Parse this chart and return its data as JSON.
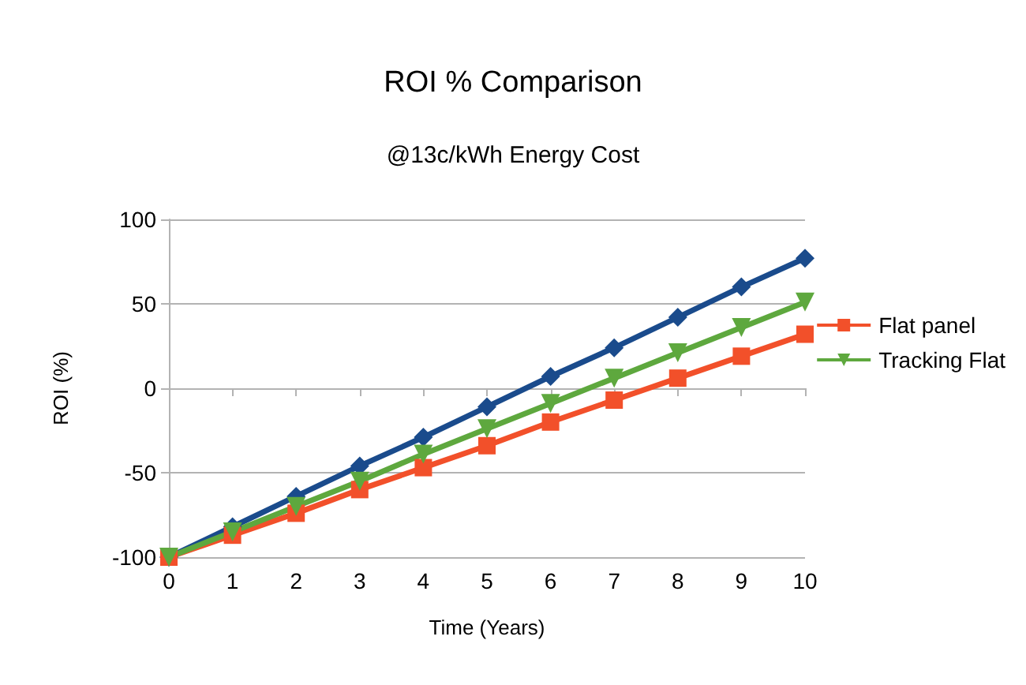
{
  "chart_data": {
    "type": "line",
    "title": "ROI % Comparison",
    "subtitle": "@13c/kWh Energy Cost",
    "xlabel": "Time (Years)",
    "ylabel": "ROI (%)",
    "categories": [
      "0",
      "1",
      "2",
      "3",
      "4",
      "5",
      "6",
      "7",
      "8",
      "9",
      "10"
    ],
    "series": [
      {
        "color": "#1a4b8c",
        "marker": "diamond",
        "values": [
          -100,
          -82,
          -64,
          -46,
          -29,
          -11,
          7,
          24,
          42,
          60,
          77
        ]
      },
      {
        "name": "Flat panel",
        "color": "#f2502a",
        "marker": "square",
        "values": [
          -100,
          -87,
          -74,
          -60,
          -47,
          -34,
          -20,
          -7,
          6,
          19,
          32
        ]
      },
      {
        "name": "Tracking Flat",
        "color": "#5ea83e",
        "marker": "triangle",
        "values": [
          -100,
          -85,
          -70,
          -55,
          -39,
          -24,
          -9,
          6,
          21,
          36,
          51
        ]
      }
    ],
    "ylim": [
      -100,
      100
    ],
    "yticks": [
      -100,
      -50,
      0,
      50,
      100
    ],
    "grid": "y",
    "legend": "right",
    "line_style": "solid"
  }
}
